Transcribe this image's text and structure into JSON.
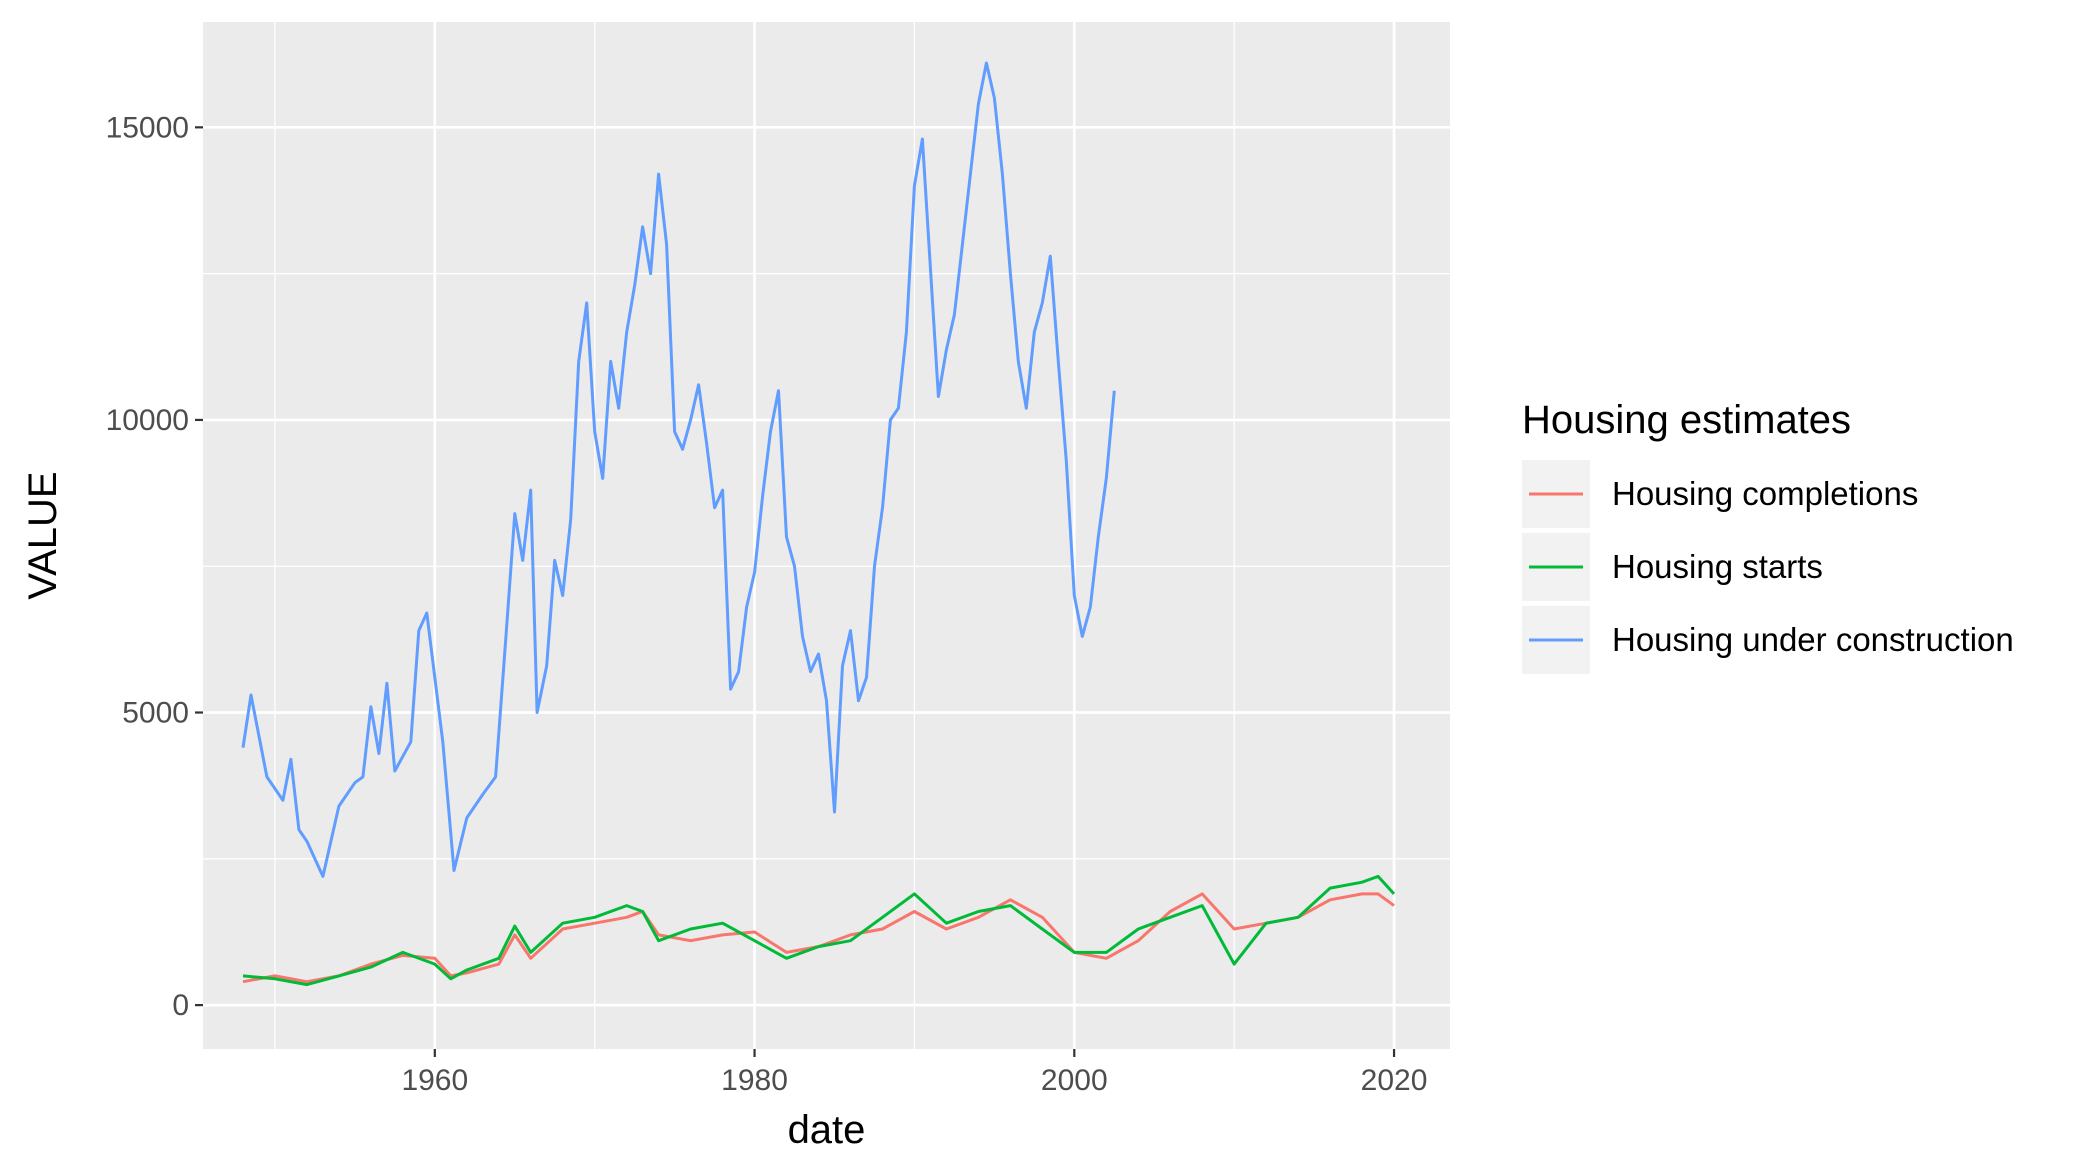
{
  "chart_data": {
    "type": "line",
    "title": "",
    "xlabel": "date",
    "ylabel": "VALUE",
    "xlim": [
      1945.5,
      2023.5
    ],
    "ylim": [
      -750,
      16800
    ],
    "x_ticks": [
      1960,
      1980,
      2000,
      2020
    ],
    "x_tick_labels": [
      "1960",
      "1980",
      "2000",
      "2020"
    ],
    "y_ticks": [
      0,
      5000,
      10000,
      15000
    ],
    "y_tick_labels": [
      "0",
      "5000",
      "10000",
      "15000"
    ],
    "grid": true,
    "legend": {
      "title": "Housing estimates",
      "placement": "right"
    },
    "series": [
      {
        "name": "Housing completions",
        "color": "#F8766D",
        "x": [
          1948,
          1950,
          1952,
          1954,
          1956,
          1958,
          1960,
          1961,
          1962,
          1964,
          1965,
          1966,
          1968,
          1970,
          1972,
          1973,
          1974,
          1976,
          1978,
          1980,
          1982,
          1984,
          1986,
          1988,
          1990,
          1992,
          1994,
          1996,
          1998,
          2000,
          2002,
          2004,
          2006,
          2008,
          2010,
          2012,
          2014,
          2016,
          2018,
          2019,
          2020
        ],
        "y": [
          400,
          500,
          400,
          500,
          700,
          850,
          800,
          500,
          550,
          700,
          1200,
          800,
          1300,
          1400,
          1500,
          1600,
          1200,
          1100,
          1200,
          1250,
          900,
          1000,
          1200,
          1300,
          1600,
          1300,
          1500,
          1800,
          1500,
          900,
          800,
          1100,
          1600,
          1900,
          1300,
          1400,
          1500,
          1800,
          1900,
          1900,
          1700
        ]
      },
      {
        "name": "Housing starts",
        "color": "#00BA38",
        "x": [
          1948,
          1950,
          1952,
          1954,
          1956,
          1958,
          1960,
          1961,
          1962,
          1964,
          1965,
          1966,
          1968,
          1970,
          1972,
          1973,
          1974,
          1976,
          1978,
          1980,
          1982,
          1984,
          1986,
          1988,
          1990,
          1992,
          1994,
          1996,
          1998,
          2000,
          2002,
          2004,
          2006,
          2008,
          2010,
          2012,
          2014,
          2016,
          2018,
          2019,
          2020
        ],
        "y": [
          500,
          450,
          350,
          500,
          650,
          900,
          700,
          450,
          600,
          800,
          1350,
          900,
          1400,
          1500,
          1700,
          1600,
          1100,
          1300,
          1400,
          1100,
          800,
          1000,
          1100,
          1500,
          1900,
          1400,
          1600,
          1700,
          1300,
          900,
          900,
          1300,
          1500,
          1700,
          700,
          1400,
          1500,
          2000,
          2100,
          2200,
          1900
        ]
      },
      {
        "name": "Housing under construction",
        "color": "#619CFF",
        "x": [
          1948.0,
          1948.5,
          1949.5,
          1950.5,
          1951.0,
          1951.5,
          1952.0,
          1953.0,
          1954.0,
          1955.0,
          1955.5,
          1956.0,
          1956.5,
          1957.0,
          1957.5,
          1958.5,
          1959.0,
          1959.5,
          1960.5,
          1961.2,
          1962.0,
          1963.0,
          1963.8,
          1964.5,
          1965.0,
          1965.5,
          1966.0,
          1966.4,
          1967.0,
          1967.5,
          1968.0,
          1968.5,
          1969.0,
          1969.5,
          1970.0,
          1970.5,
          1971.0,
          1971.5,
          1972.0,
          1972.5,
          1973.0,
          1973.5,
          1974.0,
          1974.5,
          1975.0,
          1975.5,
          1976.0,
          1976.5,
          1977.0,
          1977.5,
          1978.0,
          1978.5,
          1979.0,
          1979.5,
          1980.0,
          1980.5,
          1981.0,
          1981.5,
          1982.0,
          1982.5,
          1983.0,
          1983.5,
          1984.0,
          1984.5,
          1985.0,
          1985.5,
          1986.0,
          1986.5,
          1987.0,
          1987.5,
          1988.0,
          1988.5,
          1989.0,
          1989.5,
          1990.0,
          1990.5,
          1991.0,
          1991.5,
          1992.0,
          1992.5,
          1993.0,
          1993.5,
          1994.0,
          1994.5,
          1995.0,
          1995.5,
          1996.0,
          1996.5,
          1997.0,
          1997.5,
          1998.0,
          1998.5,
          1999.0,
          1999.5,
          2000.0,
          2000.5,
          2001.0,
          2001.5,
          2002.0,
          2002.5
        ],
        "y": [
          4400,
          5300,
          3900,
          3500,
          4200,
          3000,
          2800,
          2200,
          3400,
          3800,
          3900,
          5100,
          4300,
          5500,
          4000,
          4500,
          6400,
          6700,
          4500,
          2300,
          3200,
          3600,
          3900,
          6500,
          8400,
          7600,
          8800,
          5000,
          5800,
          7600,
          7000,
          8300,
          11000,
          12000,
          9800,
          9000,
          11000,
          10200,
          11500,
          12300,
          13300,
          12500,
          14200,
          13000,
          9800,
          9500,
          10000,
          10600,
          9600,
          8500,
          8800,
          5400,
          5700,
          6800,
          7400,
          8700,
          9800,
          10500,
          8000,
          7500,
          6300,
          5700,
          6000,
          5200,
          3300,
          5800,
          6400,
          5200,
          5600,
          7500,
          8500,
          10000,
          10200,
          11500,
          14000,
          14800,
          12600,
          10400,
          11200,
          11800,
          13000,
          14200,
          15400,
          16100,
          15500,
          14200,
          12500,
          11000,
          10200,
          11500,
          12000,
          12800,
          11000,
          9300,
          7000,
          6300,
          6800,
          8000,
          9000,
          10500
        ]
      }
    ]
  }
}
